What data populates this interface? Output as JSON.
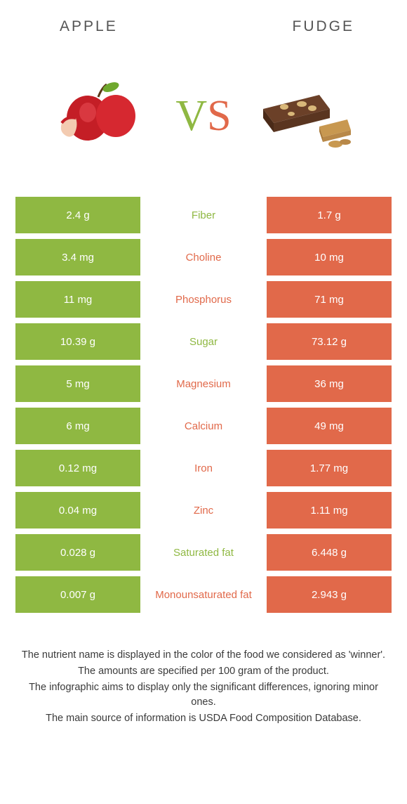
{
  "header": {
    "left": "APPLE",
    "right": "FUDGE"
  },
  "vs": {
    "v": "V",
    "s": "S"
  },
  "colors": {
    "green": "#8fb842",
    "orange": "#e1694a",
    "text": "#545454",
    "footer": "#3a3a3a",
    "background": "#ffffff"
  },
  "rows": [
    {
      "left": "2.4 g",
      "label": "Fiber",
      "right": "1.7 g",
      "winner": "green"
    },
    {
      "left": "3.4 mg",
      "label": "Choline",
      "right": "10 mg",
      "winner": "orange"
    },
    {
      "left": "11 mg",
      "label": "Phosphorus",
      "right": "71 mg",
      "winner": "orange"
    },
    {
      "left": "10.39 g",
      "label": "Sugar",
      "right": "73.12 g",
      "winner": "green"
    },
    {
      "left": "5 mg",
      "label": "Magnesium",
      "right": "36 mg",
      "winner": "orange"
    },
    {
      "left": "6 mg",
      "label": "Calcium",
      "right": "49 mg",
      "winner": "orange"
    },
    {
      "left": "0.12 mg",
      "label": "Iron",
      "right": "1.77 mg",
      "winner": "orange"
    },
    {
      "left": "0.04 mg",
      "label": "Zinc",
      "right": "1.11 mg",
      "winner": "orange"
    },
    {
      "left": "0.028 g",
      "label": "Saturated fat",
      "right": "6.448 g",
      "winner": "green"
    },
    {
      "left": "0.007 g",
      "label": "Monounsaturated fat",
      "right": "2.943 g",
      "winner": "orange"
    }
  ],
  "footer": {
    "line1": "The nutrient name is displayed in the color of the food we considered as 'winner'.",
    "line2": "The amounts are specified per 100 gram of the product.",
    "line3": "The infographic aims to display only the significant differences, ignoring minor ones.",
    "line4": "The main source of information is USDA Food Composition Database."
  }
}
